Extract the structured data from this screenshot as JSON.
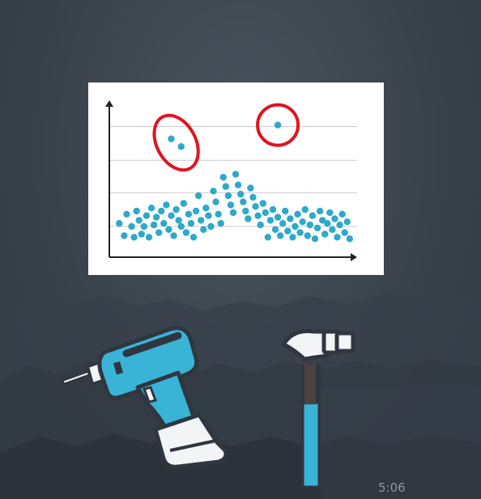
{
  "video": {
    "timestamp": "5:06"
  },
  "colors": {
    "background": "#3d4650",
    "chart_background": "#ffffff",
    "axis": "#222222",
    "gridline": "#c9c9c9",
    "point": "#2ea9c9",
    "outlier_circle": "#e0141f",
    "tool_blue": "#39b3d6",
    "tool_dark": "#2f3640",
    "tool_white": "#f2f4f5"
  },
  "icons": {
    "drill": "drill-icon",
    "hammer": "hammer-icon"
  },
  "chart_data": {
    "type": "scatter",
    "title": "",
    "xlabel": "",
    "ylabel": "",
    "xlim": [
      0,
      100
    ],
    "ylim": [
      0,
      100
    ],
    "grid": true,
    "points": [
      [
        4,
        22
      ],
      [
        6,
        14
      ],
      [
        7,
        28
      ],
      [
        9,
        20
      ],
      [
        10,
        13
      ],
      [
        11,
        30
      ],
      [
        12,
        24
      ],
      [
        13,
        15
      ],
      [
        14,
        20
      ],
      [
        15,
        27
      ],
      [
        16,
        13
      ],
      [
        17,
        32
      ],
      [
        18,
        21
      ],
      [
        19,
        26
      ],
      [
        20,
        16
      ],
      [
        21,
        30
      ],
      [
        22,
        22
      ],
      [
        23,
        34
      ],
      [
        24,
        18
      ],
      [
        25,
        27
      ],
      [
        26,
        14
      ],
      [
        27,
        31
      ],
      [
        28,
        24
      ],
      [
        29,
        20
      ],
      [
        30,
        35
      ],
      [
        31,
        16
      ],
      [
        32,
        28
      ],
      [
        33,
        22
      ],
      [
        34,
        13
      ],
      [
        35,
        30
      ],
      [
        36,
        40
      ],
      [
        37,
        24
      ],
      [
        38,
        18
      ],
      [
        39,
        32
      ],
      [
        40,
        27
      ],
      [
        41,
        20
      ],
      [
        42,
        43
      ],
      [
        43,
        36
      ],
      [
        44,
        28
      ],
      [
        45,
        22
      ],
      [
        46,
        52
      ],
      [
        47,
        46
      ],
      [
        48,
        40
      ],
      [
        49,
        34
      ],
      [
        50,
        29
      ],
      [
        51,
        54
      ],
      [
        52,
        47
      ],
      [
        53,
        41
      ],
      [
        54,
        36
      ],
      [
        55,
        30
      ],
      [
        56,
        25
      ],
      [
        57,
        45
      ],
      [
        58,
        39
      ],
      [
        59,
        33
      ],
      [
        60,
        27
      ],
      [
        61,
        21
      ],
      [
        62,
        35
      ],
      [
        63,
        29
      ],
      [
        64,
        13
      ],
      [
        65,
        24
      ],
      [
        66,
        31
      ],
      [
        67,
        18
      ],
      [
        68,
        26
      ],
      [
        69,
        14
      ],
      [
        70,
        22
      ],
      [
        71,
        30
      ],
      [
        72,
        17
      ],
      [
        73,
        25
      ],
      [
        74,
        13
      ],
      [
        75,
        20
      ],
      [
        76,
        28
      ],
      [
        77,
        16
      ],
      [
        78,
        23
      ],
      [
        79,
        31
      ],
      [
        80,
        14
      ],
      [
        81,
        21
      ],
      [
        82,
        27
      ],
      [
        83,
        12
      ],
      [
        84,
        19
      ],
      [
        85,
        30
      ],
      [
        86,
        24
      ],
      [
        87,
        15
      ],
      [
        88,
        22
      ],
      [
        89,
        29
      ],
      [
        90,
        18
      ],
      [
        91,
        25
      ],
      [
        92,
        13
      ],
      [
        93,
        21
      ],
      [
        94,
        28
      ],
      [
        95,
        16
      ],
      [
        96,
        23
      ],
      [
        97,
        12
      ],
      [
        25,
        77
      ],
      [
        29,
        72
      ],
      [
        68,
        86
      ]
    ],
    "annotations": [
      {
        "type": "ellipse",
        "label": "",
        "encloses": [
          [
            25,
            77
          ],
          [
            29,
            72
          ]
        ]
      },
      {
        "type": "circle",
        "label": "",
        "encloses": [
          [
            68,
            86
          ]
        ]
      }
    ]
  }
}
